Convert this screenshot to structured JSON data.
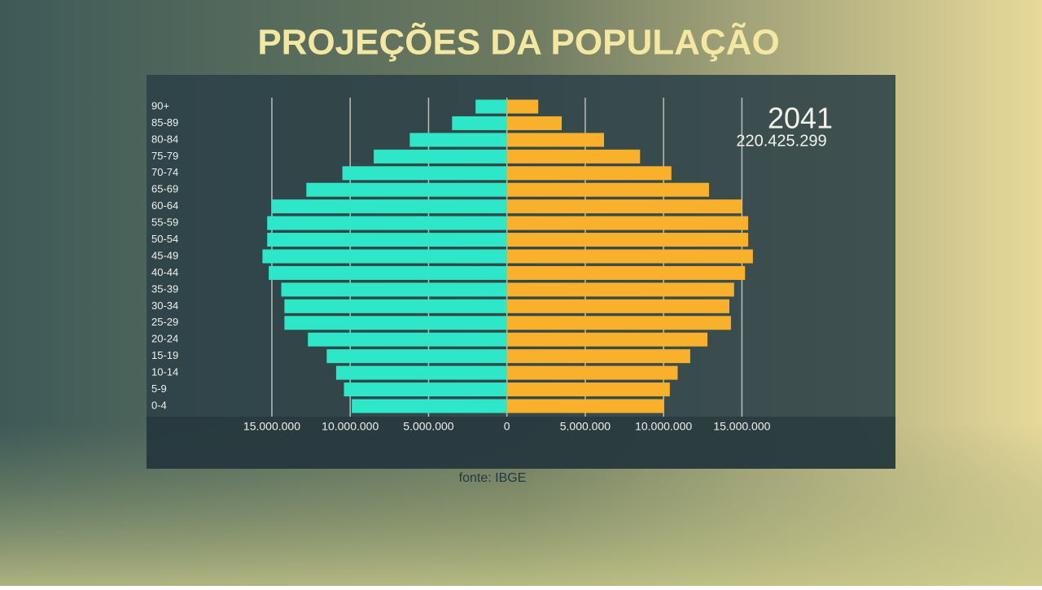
{
  "chart_data": {
    "type": "population-pyramid",
    "title": "PROJEÇÕES DA POPULAÇÃO",
    "annotations": [
      "2041",
      "220.425.299"
    ],
    "source": "fonte: IBGE",
    "categories": [
      "90+",
      "85-89",
      "80-84",
      "75-79",
      "70-74",
      "65-69",
      "60-64",
      "55-59",
      "50-54",
      "45-49",
      "40-44",
      "35-39",
      "30-34",
      "25-29",
      "20-24",
      "15-19",
      "10-14",
      "5-9",
      "0-4"
    ],
    "series": [
      {
        "color": "#2ee6c8",
        "values": [
          -2000000,
          -3500000,
          -6200000,
          -8500000,
          -10500000,
          -12800000,
          -15000000,
          -15300000,
          -15300000,
          -15600000,
          -15200000,
          -14400000,
          -14200000,
          -14200000,
          -12700000,
          -11500000,
          -10900000,
          -10400000,
          -9900000
        ]
      },
      {
        "color": "#f9b02a",
        "values": [
          2000000,
          3500000,
          6200000,
          8500000,
          10500000,
          12900000,
          15000000,
          15400000,
          15400000,
          15700000,
          15200000,
          14500000,
          14200000,
          14300000,
          12800000,
          11700000,
          10900000,
          10400000,
          10000000
        ]
      }
    ],
    "xlim": [
      -23000000,
      24800000
    ],
    "xticks": [
      {
        "value": -15000000,
        "label": "15.000.000"
      },
      {
        "value": -10000000,
        "label": "10.000.000"
      },
      {
        "value": -5000000,
        "label": "5.000.000"
      },
      0,
      {
        "value": 5000000,
        "label": "5.000.000"
      },
      {
        "value": 10000000,
        "label": "10.000.000"
      },
      {
        "value": 15000000,
        "label": "15.000.000"
      }
    ],
    "grid": true
  }
}
